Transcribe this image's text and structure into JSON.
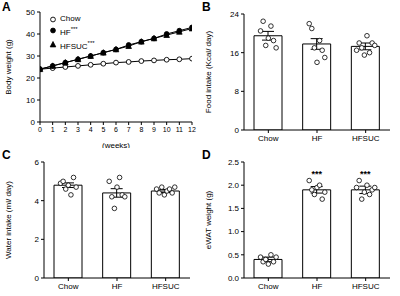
{
  "chart_data": [
    {
      "type": "line",
      "title": "A",
      "x": [
        0,
        1,
        2,
        3,
        4,
        5,
        6,
        7,
        8,
        9,
        10,
        11,
        12
      ],
      "xlabel": "(weeks)",
      "ylabel": "Body weight (g)",
      "xlim": [
        0,
        12
      ],
      "xticks": [
        0,
        1,
        2,
        3,
        4,
        5,
        6,
        7,
        8,
        9,
        10,
        11,
        12
      ],
      "ylim": [
        0,
        50
      ],
      "yticks": [
        0,
        10,
        20,
        30,
        40,
        50
      ],
      "legend": "upper left",
      "series": [
        {
          "name": "Chow",
          "color": "#000000",
          "marker": "open_circle",
          "values": [
            24,
            24.5,
            25,
            25.5,
            26,
            26.5,
            27,
            27.3,
            27.7,
            28,
            28.3,
            28.5,
            28.8
          ]
        },
        {
          "name": "HF***",
          "color": "#000000",
          "marker": "circle",
          "values": [
            24,
            25.5,
            27,
            28.5,
            30,
            31.5,
            33,
            35,
            36.5,
            38,
            40,
            41.5,
            43
          ]
        },
        {
          "name": "HFSUC***",
          "color": "#000000",
          "marker": "triangle",
          "values": [
            24,
            25.5,
            27,
            28.5,
            30,
            31.5,
            33,
            34.5,
            36.5,
            38,
            39.5,
            41,
            42.5
          ]
        }
      ]
    },
    {
      "type": "bar",
      "title": "B",
      "categories": [
        "Chow",
        "HF",
        "HFSUC"
      ],
      "ylabel": "Food intake (Kcal/ day)",
      "ylim": [
        0,
        24
      ],
      "yticks": [
        0,
        8,
        16,
        24
      ],
      "color": "#ffffff",
      "values": [
        19.5,
        17.8,
        17.3
      ],
      "errors": [
        0.9,
        1.1,
        0.7
      ],
      "points": [
        [
          20.5,
          22.5,
          17.5,
          19,
          21.5,
          18.5,
          17
        ],
        [
          22,
          21,
          17,
          14,
          18.5,
          16.5,
          15
        ],
        [
          16.5,
          18,
          17,
          15.5,
          19.5,
          16,
          18,
          17.5
        ]
      ]
    },
    {
      "type": "bar",
      "title": "C",
      "categories": [
        "Chow",
        "HF",
        "HFSUC"
      ],
      "ylabel": "Water intake (ml/ day)",
      "ylim": [
        0,
        6
      ],
      "yticks": [
        0,
        2,
        4,
        6
      ],
      "color": "#ffffff",
      "values": [
        4.8,
        4.4,
        4.5
      ],
      "errors": [
        0.12,
        0.22,
        0.08
      ],
      "points": [
        [
          4.9,
          5.0,
          4.6,
          4.8,
          4.3,
          5.2,
          4.7
        ],
        [
          5.0,
          4.2,
          3.6,
          4.7,
          5.2,
          4.3,
          4.2
        ],
        [
          4.6,
          4.4,
          4.7,
          4.3,
          4.5,
          4.6,
          4.4,
          4.7
        ]
      ]
    },
    {
      "type": "bar",
      "title": "D",
      "categories": [
        "Chow",
        "HF",
        "HFSUC"
      ],
      "ylabel": "eWAT weight (g)",
      "ylim": [
        0,
        2.5
      ],
      "yticks": [
        {
          "value": 0,
          "label": "0.0"
        },
        {
          "value": 0.5,
          "label": "0.5"
        },
        {
          "value": 1,
          "label": "1.0"
        },
        {
          "value": 1.5,
          "label": "1.5"
        },
        {
          "value": 2,
          "label": "2.0"
        },
        {
          "value": 2.5,
          "label": "2.5"
        }
      ],
      "color": "#ffffff",
      "values": [
        0.4,
        1.9,
        1.9
      ],
      "errors": [
        0.05,
        0.07,
        0.08
      ],
      "points": [
        [
          0.45,
          0.35,
          0.4,
          0.3,
          0.5,
          0.35,
          0.45
        ],
        [
          2.1,
          1.9,
          1.8,
          1.95,
          2.0,
          1.7,
          1.85
        ],
        [
          1.95,
          2.1,
          1.7,
          1.85,
          2.0,
          1.8,
          1.9,
          1.95
        ]
      ],
      "annotations": [
        null,
        "***",
        "***"
      ]
    }
  ]
}
